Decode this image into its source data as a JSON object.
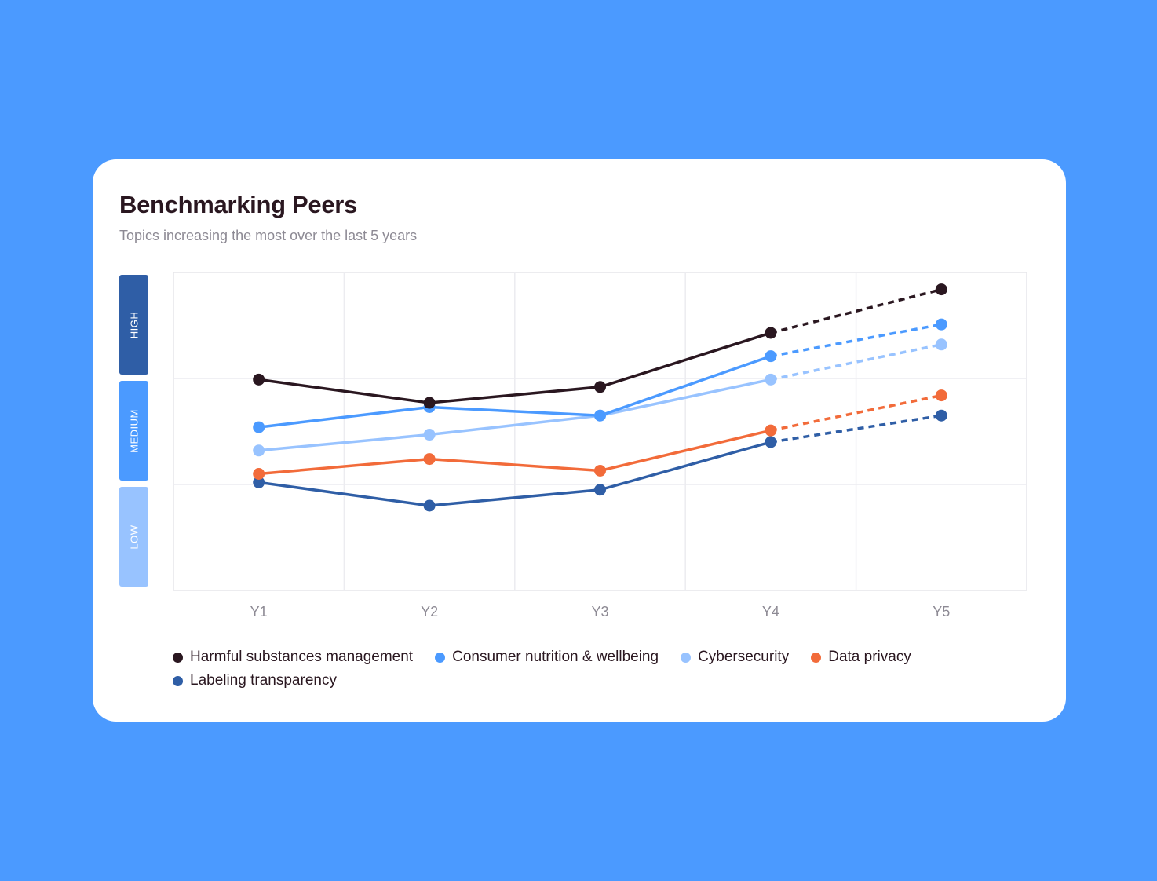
{
  "card": {
    "title": "Benchmarking Peers",
    "subtitle": "Topics increasing the most over the last 5 years"
  },
  "bands": [
    {
      "label": "HIGH",
      "color": "#2f5ea6"
    },
    {
      "label": "MEDIUM",
      "color": "#4b9aff"
    },
    {
      "label": "LOW",
      "color": "#98c3ff"
    }
  ],
  "chart_data": {
    "type": "line",
    "title": "Benchmarking Peers",
    "subtitle": "Topics increasing the most over the last 5 years",
    "categories": [
      "Y1",
      "Y2",
      "Y3",
      "Y4",
      "Y5"
    ],
    "y_scale": "ordinal bands LOW / MEDIUM / HIGH (0-3 band units)",
    "ylim": [
      0,
      3
    ],
    "grid": true,
    "legend_placement": "bottom",
    "projected_from_index": 3,
    "series": [
      {
        "name": "Harmful substances management",
        "color": "#2a1720",
        "values": [
          1.99,
          1.77,
          1.92,
          2.43,
          2.84
        ]
      },
      {
        "name": "Consumer nutrition & wellbeing",
        "color": "#4b9aff",
        "values": [
          1.54,
          1.73,
          1.65,
          2.21,
          2.51
        ]
      },
      {
        "name": "Cybersecurity",
        "color": "#98c3ff",
        "values": [
          1.32,
          1.47,
          1.65,
          1.99,
          2.32
        ]
      },
      {
        "name": "Data privacy",
        "color": "#f26b3a",
        "values": [
          1.1,
          1.24,
          1.13,
          1.51,
          1.84
        ]
      },
      {
        "name": "Labeling transparency",
        "color": "#2f5ea6",
        "values": [
          1.02,
          0.8,
          0.95,
          1.4,
          1.65
        ]
      }
    ]
  }
}
